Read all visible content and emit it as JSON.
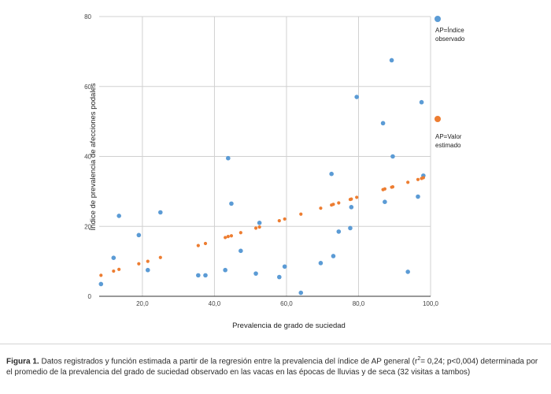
{
  "chart_data": {
    "type": "scatter",
    "xlabel": "Prevalencia de grado de suciedad",
    "ylabel": "Índice de prevalencia de afecciones podales",
    "xlim": [
      8,
      100
    ],
    "ylim": [
      0,
      80
    ],
    "xticks": [
      20,
      40,
      60,
      80,
      100
    ],
    "xtick_labels": [
      "20,0",
      "40,0",
      "60,0",
      "80,0",
      "100,0"
    ],
    "yticks": [
      0,
      20,
      40,
      60,
      80
    ],
    "ytick_labels": [
      "0",
      "20",
      "40",
      "60",
      "80"
    ],
    "grid": true,
    "legend_position": "right",
    "series": [
      {
        "name_lines": [
          "AP=Índice",
          "observado"
        ],
        "color": "#5b9bd5",
        "points": [
          [
            8.5,
            3.5
          ],
          [
            12,
            11
          ],
          [
            13.5,
            23
          ],
          [
            19,
            17.5
          ],
          [
            21.5,
            7.5
          ],
          [
            25,
            24
          ],
          [
            35.5,
            6
          ],
          [
            37.5,
            6
          ],
          [
            43,
            7.5
          ],
          [
            43.8,
            39.5
          ],
          [
            44.7,
            26.5
          ],
          [
            47.3,
            13
          ],
          [
            51.5,
            6.5
          ],
          [
            52.5,
            21
          ],
          [
            58,
            5.5
          ],
          [
            59.5,
            8.5
          ],
          [
            64,
            1
          ],
          [
            69.5,
            9.5
          ],
          [
            72.5,
            35
          ],
          [
            73,
            11.5
          ],
          [
            74.5,
            18.5
          ],
          [
            77.7,
            19.5
          ],
          [
            78,
            25.5
          ],
          [
            79.5,
            57
          ],
          [
            86.8,
            49.5
          ],
          [
            87.3,
            27
          ],
          [
            89.2,
            67.5
          ],
          [
            89.5,
            40
          ],
          [
            93.7,
            7
          ],
          [
            96.5,
            28.5
          ],
          [
            97.5,
            55.5
          ],
          [
            98,
            34.5
          ]
        ]
      },
      {
        "name_lines": [
          "AP=Valor",
          "estimado"
        ],
        "color": "#ed7d31",
        "points": [
          [
            8.5,
            6
          ],
          [
            12,
            7.2
          ],
          [
            13.5,
            7.7
          ],
          [
            19,
            9.3
          ],
          [
            21.5,
            10
          ],
          [
            25,
            11.1
          ],
          [
            35.5,
            14.5
          ],
          [
            37.5,
            15.1
          ],
          [
            43,
            16.8
          ],
          [
            43.8,
            17.1
          ],
          [
            44.7,
            17.3
          ],
          [
            47.3,
            18.2
          ],
          [
            51.5,
            19.5
          ],
          [
            52.5,
            19.8
          ],
          [
            58,
            21.6
          ],
          [
            59.5,
            22.1
          ],
          [
            64,
            23.5
          ],
          [
            69.5,
            25.2
          ],
          [
            72.5,
            26.1
          ],
          [
            73,
            26.3
          ],
          [
            74.5,
            26.7
          ],
          [
            77.7,
            27.7
          ],
          [
            78,
            27.8
          ],
          [
            79.5,
            28.3
          ],
          [
            86.8,
            30.5
          ],
          [
            87.3,
            30.7
          ],
          [
            89.2,
            31.2
          ],
          [
            89.5,
            31.3
          ],
          [
            93.7,
            32.6
          ],
          [
            96.5,
            33.4
          ],
          [
            97.5,
            33.7
          ],
          [
            98,
            33.9
          ]
        ]
      }
    ]
  },
  "caption": {
    "label": "Figura 1.",
    "text_before_superscript": " Datos registrados y función estimada a partir de la regresión entre la prevalencia del índice de AP general (r",
    "superscript": "2",
    "text_after_superscript": "= 0,24; p<0,004) determinada por el promedio de la prevalencia del grado de suciedad observado en las vacas en las épocas de lluvias y de seca (32 visitas a tambos)"
  }
}
